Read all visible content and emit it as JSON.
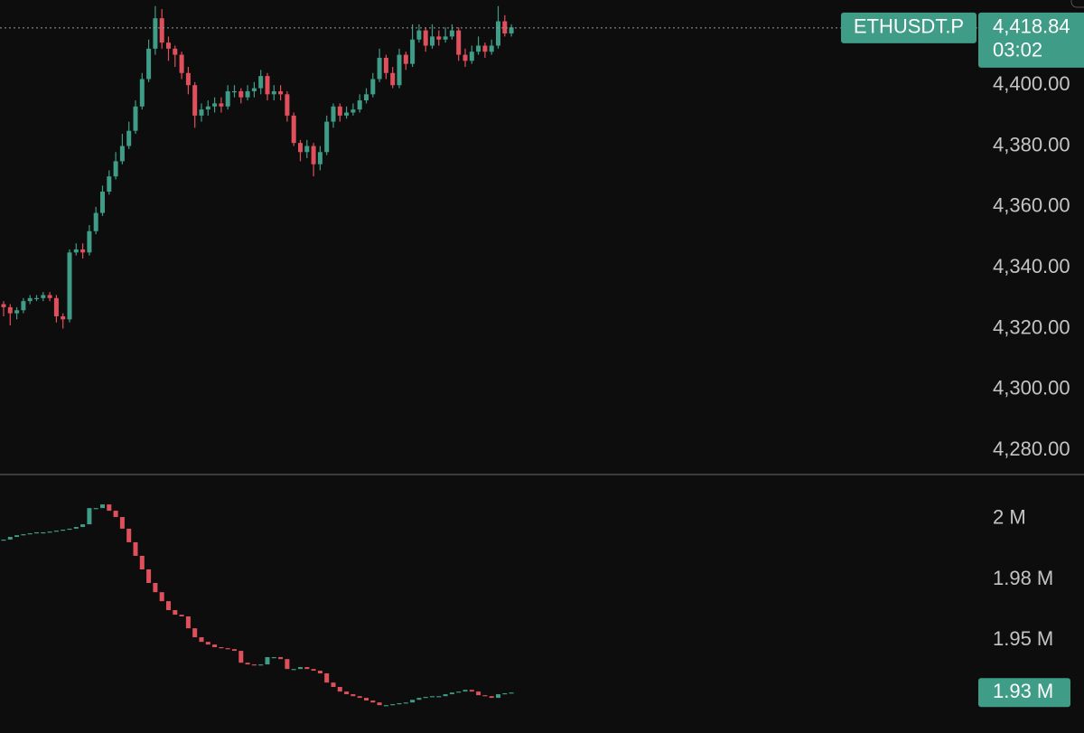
{
  "chart_data": [
    {
      "type": "candlestick",
      "symbol": "ETHUSDT.P",
      "price_line": {
        "value": 4418.84,
        "label": "4,418.84"
      },
      "countdown": "03:02",
      "up_color": "#3e9c87",
      "down_color": "#e0505c",
      "ylim": [
        4272,
        4428
      ],
      "yticks": [
        {
          "value": 4400,
          "label": "4,400.00"
        },
        {
          "value": 4380,
          "label": "4,380.00"
        },
        {
          "value": 4360,
          "label": "4,360.00"
        },
        {
          "value": 4340,
          "label": "4,340.00"
        },
        {
          "value": 4320,
          "label": "4,320.00"
        },
        {
          "value": 4300,
          "label": "4,300.00"
        },
        {
          "value": 4280,
          "label": "4,280.00"
        }
      ],
      "open": [
        4328,
        4327,
        4325,
        4326,
        4329,
        4330,
        4330,
        4331,
        4330,
        4324,
        4323,
        4345,
        4346,
        4345,
        4352,
        4358,
        4365,
        4370,
        4375,
        4380,
        4385,
        4393,
        4402,
        4412,
        4422,
        4414,
        4412,
        4410,
        4404,
        4400,
        4390,
        4392,
        4393,
        4394,
        4393,
        4398,
        4398,
        4396,
        4398,
        4399,
        4403,
        4397,
        4398,
        4397,
        4390,
        4381,
        4378,
        4380,
        4374,
        4378,
        4388,
        4393,
        4390,
        4391,
        4392,
        4395,
        4397,
        4402,
        4409,
        4404,
        4400,
        4410,
        4407,
        4415,
        4418,
        4413,
        4416,
        4415,
        4416,
        4418,
        4410,
        4408,
        4411,
        4413,
        4411,
        4413,
        4421,
        4417
      ],
      "high": [
        4329,
        4328,
        4327,
        4330,
        4331,
        4331,
        4332,
        4332,
        4331,
        4325,
        4346,
        4348,
        4348,
        4354,
        4360,
        4367,
        4372,
        4378,
        4384,
        4388,
        4395,
        4404,
        4415,
        4426,
        4425,
        4416,
        4413,
        4411,
        4406,
        4401,
        4394,
        4395,
        4396,
        4396,
        4400,
        4400,
        4399,
        4400,
        4401,
        4405,
        4404,
        4400,
        4400,
        4398,
        4391,
        4382,
        4382,
        4381,
        4380,
        4390,
        4394,
        4394,
        4393,
        4394,
        4397,
        4399,
        4404,
        4412,
        4410,
        4406,
        4412,
        4411,
        4420,
        4420,
        4419,
        4420,
        4418,
        4419,
        4420,
        4419,
        4412,
        4413,
        4416,
        4414,
        4415,
        4426,
        4423,
        4420
      ],
      "low": [
        4324,
        4321,
        4323,
        4325,
        4328,
        4329,
        4329,
        4329,
        4322,
        4320,
        4322,
        4344,
        4343,
        4344,
        4351,
        4357,
        4364,
        4369,
        4374,
        4379,
        4384,
        4392,
        4401,
        4410,
        4412,
        4408,
        4406,
        4402,
        4397,
        4386,
        4388,
        4390,
        4391,
        4391,
        4392,
        4396,
        4394,
        4395,
        4396,
        4397,
        4395,
        4395,
        4395,
        4388,
        4380,
        4375,
        4376,
        4370,
        4372,
        4377,
        4386,
        4388,
        4389,
        4390,
        4391,
        4394,
        4396,
        4401,
        4402,
        4399,
        4399,
        4405,
        4406,
        4414,
        4411,
        4412,
        4413,
        4414,
        4415,
        4408,
        4406,
        4407,
        4410,
        4409,
        4410,
        4412,
        4416,
        4416
      ],
      "close": [
        4327,
        4325,
        4326,
        4329,
        4330,
        4330,
        4331,
        4330,
        4324,
        4323,
        4345,
        4346,
        4345,
        4352,
        4358,
        4365,
        4370,
        4375,
        4380,
        4385,
        4393,
        4402,
        4412,
        4422,
        4414,
        4412,
        4410,
        4404,
        4400,
        4390,
        4392,
        4393,
        4394,
        4393,
        4398,
        4398,
        4396,
        4398,
        4399,
        4403,
        4397,
        4398,
        4397,
        4390,
        4381,
        4378,
        4380,
        4374,
        4378,
        4388,
        4393,
        4390,
        4391,
        4392,
        4395,
        4397,
        4402,
        4409,
        4404,
        4400,
        4410,
        4407,
        4415,
        4418,
        4413,
        4416,
        4415,
        4416,
        4418,
        4410,
        4408,
        4411,
        4413,
        4411,
        4413,
        4421,
        4417,
        4419
      ]
    },
    {
      "type": "candlestick",
      "last_label": "1.93 M",
      "up_color": "#3e9c87",
      "down_color": "#e0505c",
      "ylim": [
        1911600,
        2017500
      ],
      "yticks": [
        {
          "value": 2000000,
          "label": "2 M"
        },
        {
          "value": 1975000,
          "label": "1.98 M"
        },
        {
          "value": 1950000,
          "label": "1.95 M"
        }
      ],
      "open": [
        1991000,
        1991400,
        1992500,
        1993200,
        1993600,
        1994000,
        1994400,
        1994400,
        1994700,
        1995100,
        1995500,
        1995900,
        1996600,
        1997700,
        2004400,
        2004400,
        2005900,
        2003300,
        2000700,
        1995900,
        1990300,
        1984700,
        1979100,
        1973500,
        1969700,
        1966000,
        1962300,
        1960400,
        1959700,
        1954800,
        1951100,
        1949200,
        1948100,
        1947000,
        1946600,
        1946200,
        1945500,
        1940600,
        1939900,
        1939500,
        1939900,
        1942900,
        1942900,
        1942100,
        1938000,
        1938000,
        1938800,
        1938000,
        1937300,
        1936200,
        1932400,
        1930600,
        1928700,
        1927600,
        1926800,
        1926100,
        1925000,
        1924200,
        1923100,
        1923100,
        1923500,
        1923900,
        1924200,
        1925300,
        1926100,
        1926500,
        1926800,
        1926800,
        1927600,
        1928300,
        1928700,
        1929400,
        1928700,
        1927200,
        1926800,
        1926100,
        1927600,
        1928000
      ],
      "close": [
        1991400,
        1992500,
        1993200,
        1993600,
        1994000,
        1994400,
        1994400,
        1994700,
        1995100,
        1995500,
        1995900,
        1996600,
        1997700,
        2004400,
        2004400,
        2005900,
        2003300,
        2000700,
        1995900,
        1990300,
        1984700,
        1979100,
        1973500,
        1969700,
        1966000,
        1962300,
        1960400,
        1959700,
        1954800,
        1951100,
        1949200,
        1948100,
        1947000,
        1946600,
        1946200,
        1945500,
        1940600,
        1939900,
        1939500,
        1939900,
        1942900,
        1942900,
        1942100,
        1938000,
        1938000,
        1938800,
        1938000,
        1937300,
        1936200,
        1932400,
        1930600,
        1928700,
        1927600,
        1926800,
        1926100,
        1925000,
        1924200,
        1923100,
        1923100,
        1923500,
        1923900,
        1924200,
        1925300,
        1926100,
        1926500,
        1926800,
        1926800,
        1927600,
        1928300,
        1928700,
        1929400,
        1928700,
        1927200,
        1926800,
        1926100,
        1927600,
        1928000,
        1928300
      ]
    }
  ]
}
